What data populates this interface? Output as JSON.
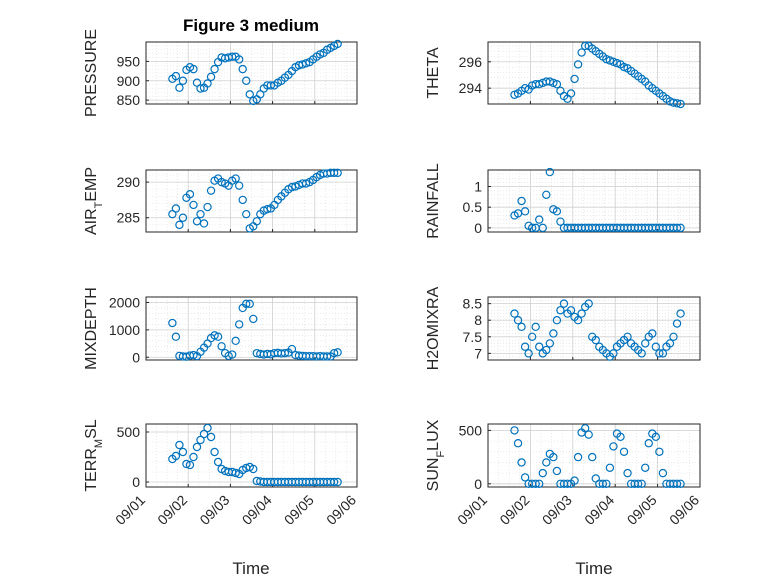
{
  "figure": {
    "title": "Figure 3 medium",
    "xlabel": "Time",
    "date_ticks": [
      "09/01",
      "09/02",
      "09/03",
      "09/04",
      "09/05",
      "09/06"
    ],
    "marker_color": "#0072BD"
  },
  "chart_data": [
    {
      "type": "scatter",
      "ylabel": "PRESSURE",
      "ylim": [
        840,
        1000
      ],
      "yticks": [
        850,
        900,
        950
      ],
      "grid": true,
      "x": [
        "09/01 15:00",
        "09/01 17:00",
        "09/01 19:00",
        "09/01 21:00",
        "09/01 23:00",
        "09/02 01:00",
        "09/02 03:00",
        "09/02 05:00",
        "09/02 07:00",
        "09/02 09:00",
        "09/02 11:00",
        "09/02 13:00",
        "09/02 15:00",
        "09/02 17:00",
        "09/02 19:00",
        "09/02 21:00",
        "09/02 23:00",
        "09/03 01:00",
        "09/03 03:00",
        "09/03 05:00",
        "09/03 07:00",
        "09/03 09:00",
        "09/03 11:00",
        "09/03 13:00",
        "09/03 15:00",
        "09/03 17:00",
        "09/03 19:00",
        "09/03 21:00",
        "09/03 23:00",
        "09/04 01:00",
        "09/04 03:00",
        "09/04 05:00",
        "09/04 07:00",
        "09/04 09:00",
        "09/04 11:00",
        "09/04 13:00",
        "09/04 15:00",
        "09/04 17:00",
        "09/04 19:00",
        "09/04 21:00",
        "09/04 23:00",
        "09/05 01:00",
        "09/05 03:00",
        "09/05 05:00",
        "09/05 07:00",
        "09/05 09:00",
        "09/05 11:00",
        "09/05 13:00"
      ],
      "y": [
        905,
        912,
        882,
        900,
        928,
        935,
        930,
        895,
        880,
        882,
        893,
        910,
        930,
        948,
        960,
        958,
        960,
        962,
        962,
        955,
        930,
        900,
        865,
        848,
        852,
        865,
        880,
        888,
        888,
        888,
        895,
        900,
        908,
        915,
        925,
        935,
        940,
        942,
        945,
        948,
        955,
        962,
        968,
        972,
        980,
        985,
        990,
        995
      ]
    },
    {
      "type": "scatter",
      "ylabel": "THETA",
      "ylim": [
        292.8,
        297.5
      ],
      "yticks": [
        294,
        296
      ],
      "grid": true,
      "x": [
        "09/01 15:00",
        "09/01 17:00",
        "09/01 19:00",
        "09/01 21:00",
        "09/01 23:00",
        "09/02 01:00",
        "09/02 03:00",
        "09/02 05:00",
        "09/02 07:00",
        "09/02 09:00",
        "09/02 11:00",
        "09/02 13:00",
        "09/02 15:00",
        "09/02 17:00",
        "09/02 19:00",
        "09/02 21:00",
        "09/02 23:00",
        "09/03 01:00",
        "09/03 03:00",
        "09/03 05:00",
        "09/03 07:00",
        "09/03 09:00",
        "09/03 11:00",
        "09/03 13:00",
        "09/03 15:00",
        "09/03 17:00",
        "09/03 19:00",
        "09/03 21:00",
        "09/03 23:00",
        "09/04 01:00",
        "09/04 03:00",
        "09/04 05:00",
        "09/04 07:00",
        "09/04 09:00",
        "09/04 11:00",
        "09/04 13:00",
        "09/04 15:00",
        "09/04 17:00",
        "09/04 19:00",
        "09/04 21:00",
        "09/04 23:00",
        "09/05 01:00",
        "09/05 03:00",
        "09/05 05:00",
        "09/05 07:00",
        "09/05 09:00",
        "09/05 11:00",
        "09/05 13:00"
      ],
      "y": [
        293.5,
        293.6,
        293.8,
        294.0,
        293.9,
        294.2,
        294.3,
        294.3,
        294.4,
        294.5,
        294.5,
        294.4,
        294.3,
        293.8,
        293.4,
        293.2,
        293.6,
        294.7,
        295.8,
        296.7,
        297.2,
        297.2,
        297.0,
        296.8,
        296.6,
        296.4,
        296.2,
        296.1,
        296.0,
        295.9,
        295.8,
        295.6,
        295.5,
        295.3,
        295.1,
        294.9,
        294.7,
        294.5,
        294.2,
        294.0,
        293.8,
        293.6,
        293.4,
        293.2,
        293.0,
        292.9,
        292.85,
        292.8
      ]
    },
    {
      "type": "scatter",
      "ylabel": "AIR_TEMP",
      "ylim": [
        283,
        291.7
      ],
      "yticks": [
        285,
        290
      ],
      "grid": true,
      "x": [
        "09/01 15:00",
        "09/01 17:00",
        "09/01 19:00",
        "09/01 21:00",
        "09/01 23:00",
        "09/02 01:00",
        "09/02 03:00",
        "09/02 05:00",
        "09/02 07:00",
        "09/02 09:00",
        "09/02 11:00",
        "09/02 13:00",
        "09/02 15:00",
        "09/02 17:00",
        "09/02 19:00",
        "09/02 21:00",
        "09/02 23:00",
        "09/03 01:00",
        "09/03 03:00",
        "09/03 05:00",
        "09/03 07:00",
        "09/03 09:00",
        "09/03 11:00",
        "09/03 13:00",
        "09/03 15:00",
        "09/03 17:00",
        "09/03 19:00",
        "09/03 21:00",
        "09/03 23:00",
        "09/04 01:00",
        "09/04 03:00",
        "09/04 05:00",
        "09/04 07:00",
        "09/04 09:00",
        "09/04 11:00",
        "09/04 13:00",
        "09/04 15:00",
        "09/04 17:00",
        "09/04 19:00",
        "09/04 21:00",
        "09/04 23:00",
        "09/05 01:00",
        "09/05 03:00",
        "09/05 05:00",
        "09/05 07:00",
        "09/05 09:00",
        "09/05 11:00",
        "09/05 13:00"
      ],
      "y": [
        285.5,
        286.3,
        284.0,
        285.0,
        287.8,
        288.3,
        286.8,
        284.5,
        285.5,
        284.2,
        286.5,
        288.8,
        290.2,
        290.5,
        290.0,
        289.8,
        289.5,
        290.2,
        290.5,
        289.5,
        287.5,
        285.5,
        283.5,
        283.8,
        284.5,
        285.5,
        286.0,
        286.2,
        286.3,
        286.8,
        287.5,
        288.0,
        288.5,
        289.0,
        289.3,
        289.4,
        289.6,
        289.8,
        289.8,
        290.0,
        290.3,
        290.7,
        291.0,
        291.2,
        291.2,
        291.3,
        291.3,
        291.3
      ]
    },
    {
      "type": "scatter",
      "ylabel": "RAINFALL",
      "ylim": [
        -0.1,
        1.4
      ],
      "yticks": [
        0,
        0.5,
        1
      ],
      "grid": true,
      "x": [
        "09/01 15:00",
        "09/01 17:00",
        "09/01 19:00",
        "09/01 21:00",
        "09/01 23:00",
        "09/02 01:00",
        "09/02 03:00",
        "09/02 05:00",
        "09/02 07:00",
        "09/02 09:00",
        "09/02 11:00",
        "09/02 13:00",
        "09/02 15:00",
        "09/02 17:00",
        "09/02 19:00",
        "09/02 21:00",
        "09/02 23:00",
        "09/03 01:00",
        "09/03 03:00",
        "09/03 05:00",
        "09/03 07:00",
        "09/03 09:00",
        "09/03 11:00",
        "09/03 13:00",
        "09/03 15:00",
        "09/03 17:00",
        "09/03 19:00",
        "09/03 21:00",
        "09/03 23:00",
        "09/04 01:00",
        "09/04 03:00",
        "09/04 05:00",
        "09/04 07:00",
        "09/04 09:00",
        "09/04 11:00",
        "09/04 13:00",
        "09/04 15:00",
        "09/04 17:00",
        "09/04 19:00",
        "09/04 21:00",
        "09/04 23:00",
        "09/05 01:00",
        "09/05 03:00",
        "09/05 05:00",
        "09/05 07:00",
        "09/05 09:00",
        "09/05 11:00",
        "09/05 13:00"
      ],
      "y": [
        0.3,
        0.35,
        0.65,
        0.4,
        0.05,
        0,
        0,
        0.2,
        0,
        0.8,
        1.35,
        0.45,
        0.4,
        0.15,
        0,
        0,
        0,
        0,
        0,
        0,
        0,
        0,
        0,
        0,
        0,
        0,
        0,
        0,
        0,
        0,
        0,
        0,
        0,
        0,
        0,
        0,
        0,
        0,
        0,
        0,
        0,
        0,
        0,
        0,
        0,
        0,
        0,
        0
      ]
    },
    {
      "type": "scatter",
      "ylabel": "MIXDEPTH",
      "ylim": [
        -100,
        2200
      ],
      "yticks": [
        0,
        1000,
        2000
      ],
      "grid": true,
      "x": [
        "09/01 15:00",
        "09/01 17:00",
        "09/01 19:00",
        "09/01 21:00",
        "09/01 23:00",
        "09/02 01:00",
        "09/02 03:00",
        "09/02 05:00",
        "09/02 07:00",
        "09/02 09:00",
        "09/02 11:00",
        "09/02 13:00",
        "09/02 15:00",
        "09/02 17:00",
        "09/02 19:00",
        "09/02 21:00",
        "09/02 23:00",
        "09/03 01:00",
        "09/03 03:00",
        "09/03 05:00",
        "09/03 07:00",
        "09/03 09:00",
        "09/03 11:00",
        "09/03 13:00",
        "09/03 15:00",
        "09/03 17:00",
        "09/03 19:00",
        "09/03 21:00",
        "09/03 23:00",
        "09/04 01:00",
        "09/04 03:00",
        "09/04 05:00",
        "09/04 07:00",
        "09/04 09:00",
        "09/04 11:00",
        "09/04 13:00",
        "09/04 15:00",
        "09/04 17:00",
        "09/04 19:00",
        "09/04 21:00",
        "09/04 23:00",
        "09/05 01:00",
        "09/05 03:00",
        "09/05 05:00",
        "09/05 07:00",
        "09/05 09:00",
        "09/05 11:00",
        "09/05 13:00"
      ],
      "y": [
        1250,
        750,
        50,
        30,
        20,
        60,
        80,
        40,
        200,
        350,
        500,
        700,
        800,
        750,
        400,
        150,
        50,
        100,
        600,
        1200,
        1800,
        1950,
        1950,
        1400,
        150,
        120,
        100,
        120,
        110,
        150,
        160,
        140,
        150,
        170,
        300,
        80,
        60,
        50,
        40,
        40,
        40,
        30,
        40,
        30,
        30,
        30,
        150,
        180
      ]
    },
    {
      "type": "scatter",
      "ylabel": "H2OMIXRA",
      "ylim": [
        6.8,
        8.7
      ],
      "yticks": [
        7,
        7.5,
        8,
        8.5
      ],
      "grid": true,
      "x": [
        "09/01 15:00",
        "09/01 17:00",
        "09/01 19:00",
        "09/01 21:00",
        "09/01 23:00",
        "09/02 01:00",
        "09/02 03:00",
        "09/02 05:00",
        "09/02 07:00",
        "09/02 09:00",
        "09/02 11:00",
        "09/02 13:00",
        "09/02 15:00",
        "09/02 17:00",
        "09/02 19:00",
        "09/02 21:00",
        "09/02 23:00",
        "09/03 01:00",
        "09/03 03:00",
        "09/03 05:00",
        "09/03 07:00",
        "09/03 09:00",
        "09/03 11:00",
        "09/03 13:00",
        "09/03 15:00",
        "09/03 17:00",
        "09/03 19:00",
        "09/03 21:00",
        "09/03 23:00",
        "09/04 01:00",
        "09/04 03:00",
        "09/04 05:00",
        "09/04 07:00",
        "09/04 09:00",
        "09/04 11:00",
        "09/04 13:00",
        "09/04 15:00",
        "09/04 17:00",
        "09/04 19:00",
        "09/04 21:00",
        "09/04 23:00",
        "09/05 01:00",
        "09/05 03:00",
        "09/05 05:00",
        "09/05 07:00",
        "09/05 09:00",
        "09/05 11:00",
        "09/05 13:00"
      ],
      "y": [
        8.2,
        8.0,
        7.8,
        7.2,
        7.0,
        7.5,
        7.8,
        7.2,
        7.0,
        7.1,
        7.3,
        7.6,
        8.0,
        8.3,
        8.5,
        8.2,
        8.3,
        8.1,
        8.0,
        8.2,
        8.4,
        8.5,
        7.5,
        7.4,
        7.2,
        7.1,
        7.0,
        6.9,
        7.0,
        7.2,
        7.3,
        7.4,
        7.5,
        7.3,
        7.2,
        7.1,
        7.0,
        7.3,
        7.5,
        7.6,
        7.2,
        7.0,
        7.0,
        7.2,
        7.3,
        7.5,
        7.9,
        8.2
      ]
    },
    {
      "type": "scatter",
      "ylabel": "TERR_MSL",
      "ylim": [
        -50,
        580
      ],
      "yticks": [
        0,
        500
      ],
      "grid": true,
      "x": [
        "09/01 15:00",
        "09/01 17:00",
        "09/01 19:00",
        "09/01 21:00",
        "09/01 23:00",
        "09/02 01:00",
        "09/02 03:00",
        "09/02 05:00",
        "09/02 07:00",
        "09/02 09:00",
        "09/02 11:00",
        "09/02 13:00",
        "09/02 15:00",
        "09/02 17:00",
        "09/02 19:00",
        "09/02 21:00",
        "09/02 23:00",
        "09/03 01:00",
        "09/03 03:00",
        "09/03 05:00",
        "09/03 07:00",
        "09/03 09:00",
        "09/03 11:00",
        "09/03 13:00",
        "09/03 15:00",
        "09/03 17:00",
        "09/03 19:00",
        "09/03 21:00",
        "09/03 23:00",
        "09/04 01:00",
        "09/04 03:00",
        "09/04 05:00",
        "09/04 07:00",
        "09/04 09:00",
        "09/04 11:00",
        "09/04 13:00",
        "09/04 15:00",
        "09/04 17:00",
        "09/04 19:00",
        "09/04 21:00",
        "09/04 23:00",
        "09/05 01:00",
        "09/05 03:00",
        "09/05 05:00",
        "09/05 07:00",
        "09/05 09:00",
        "09/05 11:00",
        "09/05 13:00"
      ],
      "y": [
        230,
        260,
        370,
        300,
        180,
        170,
        250,
        350,
        420,
        480,
        540,
        450,
        300,
        200,
        130,
        110,
        100,
        100,
        90,
        80,
        120,
        140,
        150,
        130,
        10,
        5,
        0,
        0,
        0,
        0,
        0,
        0,
        0,
        0,
        0,
        0,
        0,
        0,
        0,
        0,
        0,
        0,
        0,
        0,
        0,
        0,
        0,
        0
      ]
    },
    {
      "type": "scatter",
      "ylabel": "SUN_FLUX",
      "ylim": [
        -30,
        560
      ],
      "yticks": [
        0,
        500
      ],
      "grid": true,
      "x": [
        "09/01 15:00",
        "09/01 17:00",
        "09/01 19:00",
        "09/01 21:00",
        "09/01 23:00",
        "09/02 01:00",
        "09/02 03:00",
        "09/02 05:00",
        "09/02 07:00",
        "09/02 09:00",
        "09/02 11:00",
        "09/02 13:00",
        "09/02 15:00",
        "09/02 17:00",
        "09/02 19:00",
        "09/02 21:00",
        "09/02 23:00",
        "09/03 01:00",
        "09/03 03:00",
        "09/03 05:00",
        "09/03 07:00",
        "09/03 09:00",
        "09/03 11:00",
        "09/03 13:00",
        "09/03 15:00",
        "09/03 17:00",
        "09/03 19:00",
        "09/03 21:00",
        "09/03 23:00",
        "09/04 01:00",
        "09/04 03:00",
        "09/04 05:00",
        "09/04 07:00",
        "09/04 09:00",
        "09/04 11:00",
        "09/04 13:00",
        "09/04 15:00",
        "09/04 17:00",
        "09/04 19:00",
        "09/04 21:00",
        "09/04 23:00",
        "09/05 01:00",
        "09/05 03:00",
        "09/05 05:00",
        "09/05 07:00",
        "09/05 09:00",
        "09/05 11:00",
        "09/05 13:00"
      ],
      "y": [
        500,
        380,
        200,
        60,
        0,
        0,
        0,
        0,
        100,
        200,
        280,
        250,
        120,
        0,
        0,
        0,
        0,
        30,
        250,
        480,
        520,
        460,
        250,
        50,
        0,
        0,
        0,
        150,
        350,
        470,
        440,
        300,
        100,
        0,
        0,
        0,
        0,
        150,
        380,
        470,
        440,
        300,
        100,
        0,
        0,
        0,
        0,
        0
      ]
    }
  ]
}
